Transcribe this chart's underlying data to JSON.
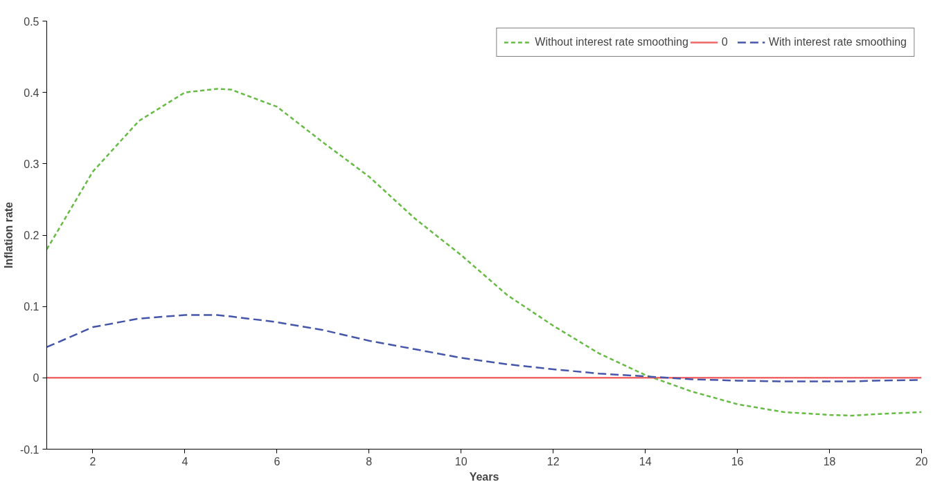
{
  "chart_data": {
    "type": "line",
    "xlabel": "Years",
    "ylabel": "Inflation rate",
    "x": [
      1,
      2,
      3,
      4,
      4.7,
      5,
      6,
      7,
      8,
      9,
      10,
      11,
      12,
      13,
      14,
      15,
      16,
      17,
      18,
      18.5,
      19,
      20
    ],
    "series": [
      {
        "name": "Without interest rate smoothing",
        "color": "#66bb44",
        "line_style": "dashed",
        "values": [
          0.18,
          0.289,
          0.36,
          0.4,
          0.405,
          0.404,
          0.38,
          0.33,
          0.282,
          0.223,
          0.172,
          0.116,
          0.073,
          0.034,
          0.004,
          -0.019,
          -0.037,
          -0.048,
          -0.052,
          -0.053,
          -0.051,
          -0.048
        ]
      },
      {
        "name": "0",
        "color": "#ee6666",
        "line_style": "solid",
        "values": [
          0,
          0,
          0,
          0,
          0,
          0,
          0,
          0,
          0,
          0,
          0,
          0,
          0,
          0,
          0,
          0,
          0,
          0,
          0,
          0,
          0,
          0
        ]
      },
      {
        "name": "With interest rate smoothing",
        "color": "#4455aa",
        "line_style": "dashed",
        "values": [
          0.043,
          0.071,
          0.083,
          0.088,
          0.088,
          0.086,
          0.078,
          0.067,
          0.052,
          0.04,
          0.028,
          0.019,
          0.012,
          0.006,
          0.002,
          -0.002,
          -0.004,
          -0.005,
          -0.005,
          -0.005,
          -0.004,
          -0.003
        ]
      }
    ],
    "xlim": [
      1,
      20
    ],
    "xticks": [
      2,
      4,
      6,
      8,
      10,
      12,
      14,
      16,
      18,
      20
    ],
    "ylim": [
      -0.1,
      0.5
    ],
    "yticks": [
      -0.1,
      0,
      0.1,
      0.2,
      0.3,
      0.4,
      0.5
    ],
    "grid": false,
    "legend": "top right",
    "marker": "none"
  }
}
